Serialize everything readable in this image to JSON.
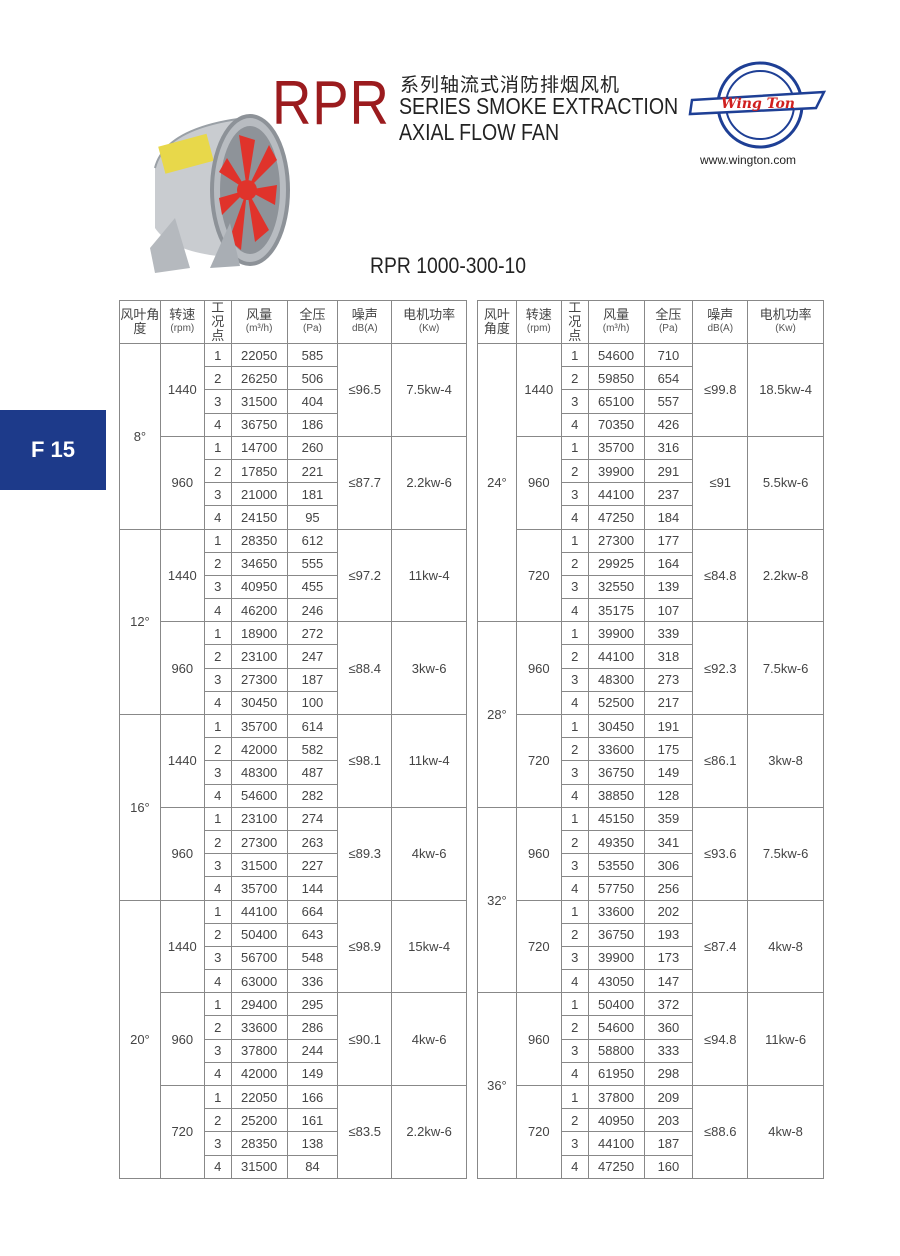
{
  "header": {
    "series": "RPR",
    "title_cn": "系列轴流式消防排烟风机",
    "title_en_1": "SERIES SMOKE EXTRACTION",
    "title_en_2": "AXIAL FLOW FAN",
    "logo_text": "Wing Ton",
    "url": "www.wington.com",
    "model": "RPR 1000-300-10",
    "page_tab": "F 15"
  },
  "colors": {
    "brand_red": "#9b1b1e",
    "tab_blue": "#1d3a8a",
    "logo_blue": "#1e3f95"
  },
  "table_headers": [
    {
      "cn": "风叶角度",
      "unit": ""
    },
    {
      "cn": "转速",
      "unit": "(rpm)"
    },
    {
      "cn": "工况点",
      "unit": ""
    },
    {
      "cn": "风量",
      "unit": "(m³/h)"
    },
    {
      "cn": "全压",
      "unit": "(Pa)"
    },
    {
      "cn": "噪声",
      "unit": "dB(A)"
    },
    {
      "cn": "电机功率",
      "unit": "(Kw)"
    }
  ],
  "left": [
    {
      "angle": "8°",
      "speeds": [
        {
          "rpm": "1440",
          "noise": "≤96.5",
          "power": "7.5kw-4",
          "points": [
            [
              "1",
              "22050",
              "585"
            ],
            [
              "2",
              "26250",
              "506"
            ],
            [
              "3",
              "31500",
              "404"
            ],
            [
              "4",
              "36750",
              "186"
            ]
          ]
        },
        {
          "rpm": "960",
          "noise": "≤87.7",
          "power": "2.2kw-6",
          "points": [
            [
              "1",
              "14700",
              "260"
            ],
            [
              "2",
              "17850",
              "221"
            ],
            [
              "3",
              "21000",
              "181"
            ],
            [
              "4",
              "24150",
              "95"
            ]
          ]
        }
      ]
    },
    {
      "angle": "12°",
      "speeds": [
        {
          "rpm": "1440",
          "noise": "≤97.2",
          "power": "11kw-4",
          "points": [
            [
              "1",
              "28350",
              "612"
            ],
            [
              "2",
              "34650",
              "555"
            ],
            [
              "3",
              "40950",
              "455"
            ],
            [
              "4",
              "46200",
              "246"
            ]
          ]
        },
        {
          "rpm": "960",
          "noise": "≤88.4",
          "power": "3kw-6",
          "points": [
            [
              "1",
              "18900",
              "272"
            ],
            [
              "2",
              "23100",
              "247"
            ],
            [
              "3",
              "27300",
              "187"
            ],
            [
              "4",
              "30450",
              "100"
            ]
          ]
        }
      ]
    },
    {
      "angle": "16°",
      "speeds": [
        {
          "rpm": "1440",
          "noise": "≤98.1",
          "power": "11kw-4",
          "points": [
            [
              "1",
              "35700",
              "614"
            ],
            [
              "2",
              "42000",
              "582"
            ],
            [
              "3",
              "48300",
              "487"
            ],
            [
              "4",
              "54600",
              "282"
            ]
          ]
        },
        {
          "rpm": "960",
          "noise": "≤89.3",
          "power": "4kw-6",
          "points": [
            [
              "1",
              "23100",
              "274"
            ],
            [
              "2",
              "27300",
              "263"
            ],
            [
              "3",
              "31500",
              "227"
            ],
            [
              "4",
              "35700",
              "144"
            ]
          ]
        }
      ]
    },
    {
      "angle": "20°",
      "speeds": [
        {
          "rpm": "1440",
          "noise": "≤98.9",
          "power": "15kw-4",
          "points": [
            [
              "1",
              "44100",
              "664"
            ],
            [
              "2",
              "50400",
              "643"
            ],
            [
              "3",
              "56700",
              "548"
            ],
            [
              "4",
              "63000",
              "336"
            ]
          ]
        },
        {
          "rpm": "960",
          "noise": "≤90.1",
          "power": "4kw-6",
          "points": [
            [
              "1",
              "29400",
              "295"
            ],
            [
              "2",
              "33600",
              "286"
            ],
            [
              "3",
              "37800",
              "244"
            ],
            [
              "4",
              "42000",
              "149"
            ]
          ]
        },
        {
          "rpm": "720",
          "noise": "≤83.5",
          "power": "2.2kw-6",
          "points": [
            [
              "1",
              "22050",
              "166"
            ],
            [
              "2",
              "25200",
              "161"
            ],
            [
              "3",
              "28350",
              "138"
            ],
            [
              "4",
              "31500",
              "84"
            ]
          ]
        }
      ]
    }
  ],
  "right": [
    {
      "angle": "24°",
      "speeds": [
        {
          "rpm": "1440",
          "noise": "≤99.8",
          "power": "18.5kw-4",
          "points": [
            [
              "1",
              "54600",
              "710"
            ],
            [
              "2",
              "59850",
              "654"
            ],
            [
              "3",
              "65100",
              "557"
            ],
            [
              "4",
              "70350",
              "426"
            ]
          ]
        },
        {
          "rpm": "960",
          "noise": "≤91",
          "power": "5.5kw-6",
          "points": [
            [
              "1",
              "35700",
              "316"
            ],
            [
              "2",
              "39900",
              "291"
            ],
            [
              "3",
              "44100",
              "237"
            ],
            [
              "4",
              "47250",
              "184"
            ]
          ]
        },
        {
          "rpm": "720",
          "noise": "≤84.8",
          "power": "2.2kw-8",
          "points": [
            [
              "1",
              "27300",
              "177"
            ],
            [
              "2",
              "29925",
              "164"
            ],
            [
              "3",
              "32550",
              "139"
            ],
            [
              "4",
              "35175",
              "107"
            ]
          ]
        }
      ]
    },
    {
      "angle": "28°",
      "speeds": [
        {
          "rpm": "960",
          "noise": "≤92.3",
          "power": "7.5kw-6",
          "points": [
            [
              "1",
              "39900",
              "339"
            ],
            [
              "2",
              "44100",
              "318"
            ],
            [
              "3",
              "48300",
              "273"
            ],
            [
              "4",
              "52500",
              "217"
            ]
          ]
        },
        {
          "rpm": "720",
          "noise": "≤86.1",
          "power": "3kw-8",
          "points": [
            [
              "1",
              "30450",
              "191"
            ],
            [
              "2",
              "33600",
              "175"
            ],
            [
              "3",
              "36750",
              "149"
            ],
            [
              "4",
              "38850",
              "128"
            ]
          ]
        }
      ]
    },
    {
      "angle": "32°",
      "speeds": [
        {
          "rpm": "960",
          "noise": "≤93.6",
          "power": "7.5kw-6",
          "points": [
            [
              "1",
              "45150",
              "359"
            ],
            [
              "2",
              "49350",
              "341"
            ],
            [
              "3",
              "53550",
              "306"
            ],
            [
              "4",
              "57750",
              "256"
            ]
          ]
        },
        {
          "rpm": "720",
          "noise": "≤87.4",
          "power": "4kw-8",
          "points": [
            [
              "1",
              "33600",
              "202"
            ],
            [
              "2",
              "36750",
              "193"
            ],
            [
              "3",
              "39900",
              "173"
            ],
            [
              "4",
              "43050",
              "147"
            ]
          ]
        }
      ]
    },
    {
      "angle": "36°",
      "speeds": [
        {
          "rpm": "960",
          "noise": "≤94.8",
          "power": "11kw-6",
          "points": [
            [
              "1",
              "50400",
              "372"
            ],
            [
              "2",
              "54600",
              "360"
            ],
            [
              "3",
              "58800",
              "333"
            ],
            [
              "4",
              "61950",
              "298"
            ]
          ]
        },
        {
          "rpm": "720",
          "noise": "≤88.6",
          "power": "4kw-8",
          "points": [
            [
              "1",
              "37800",
              "209"
            ],
            [
              "2",
              "40950",
              "203"
            ],
            [
              "3",
              "44100",
              "187"
            ],
            [
              "4",
              "47250",
              "160"
            ]
          ]
        }
      ]
    }
  ]
}
